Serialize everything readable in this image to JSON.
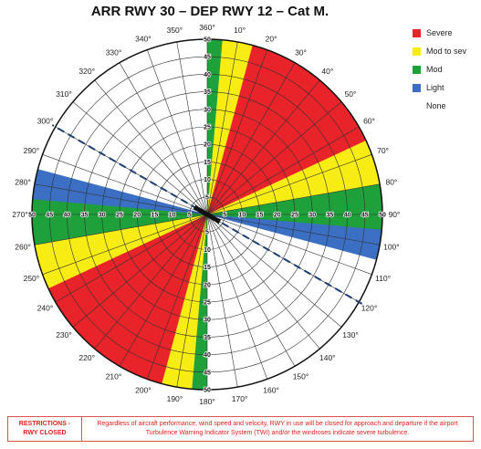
{
  "title": "ARR RWY 30 – DEP RWY 12 – Cat M.",
  "legend": [
    {
      "label": "Severe",
      "color": "#e8232a"
    },
    {
      "label": "Mod to sev",
      "color": "#f7ec13"
    },
    {
      "label": "Mod",
      "color": "#1ea03b"
    },
    {
      "label": "Light",
      "color": "#3a6fc4"
    },
    {
      "label": "None",
      "color": "#ffffff"
    }
  ],
  "rose": {
    "bearings": [
      "360°",
      "10°",
      "20°",
      "30°",
      "40°",
      "50°",
      "60°",
      "70°",
      "80°",
      "90°",
      "100°",
      "110°",
      "120°",
      "130°",
      "140°",
      "150°",
      "160°",
      "170°",
      "180°",
      "190°",
      "200°",
      "210°",
      "220°",
      "230°",
      "240°",
      "250°",
      "260°",
      "270°",
      "280°",
      "290°",
      "300°",
      "310°",
      "320°",
      "330°",
      "340°",
      "350°"
    ],
    "speed_labels": [
      "5",
      "10",
      "15",
      "20",
      "25",
      "30",
      "35",
      "40",
      "45",
      "50"
    ],
    "max_speed": 50,
    "runway_bearing": 120,
    "zones": [
      {
        "level": "Light",
        "from": 0,
        "to": 105
      },
      {
        "level": "Light",
        "from": 180,
        "to": 285
      },
      {
        "level": "Mod",
        "from": 0,
        "to": 95
      },
      {
        "level": "Mod",
        "from": 180,
        "to": 275
      },
      {
        "level": "Mod to sev",
        "from": 5,
        "to": 80
      },
      {
        "level": "Mod to sev",
        "from": 185,
        "to": 260
      },
      {
        "level": "Severe",
        "from": 15,
        "to": 65
      },
      {
        "level": "Severe",
        "from": 195,
        "to": 245
      }
    ]
  },
  "restrictions": {
    "label_line1": "RESTRICTIONS -",
    "label_line2": "RWY CLOSED",
    "text_line1": "Regardless of aircraft performance, wind speed and velocity, RWY in use will be closed for approach and departure if the airport",
    "text_line2": "Turbulence Warning Indicator System (TWI) and/or the windroses indicate severe turbulence."
  }
}
